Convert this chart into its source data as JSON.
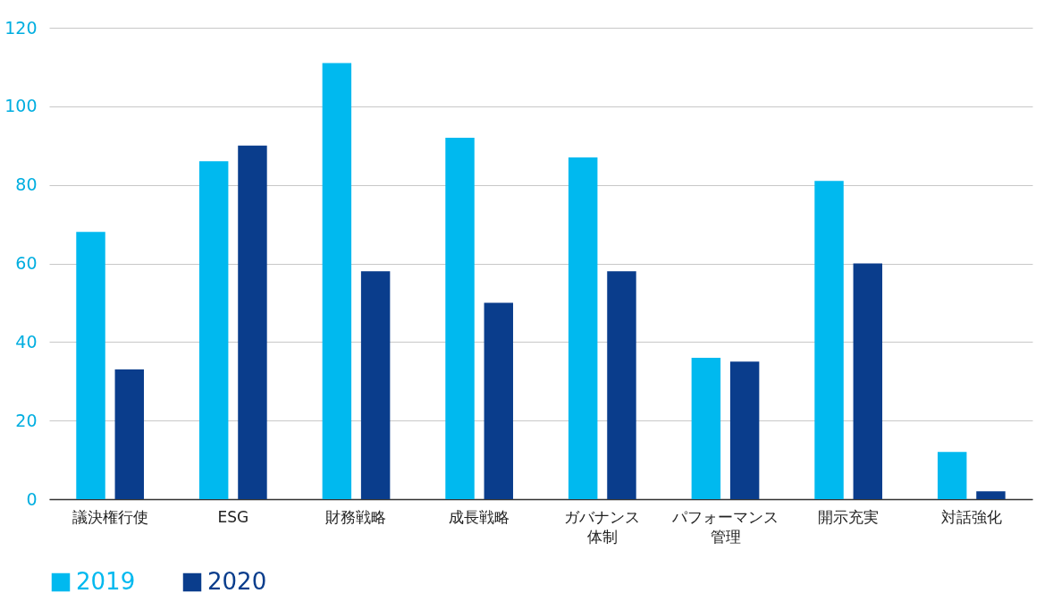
{
  "chart_data": {
    "type": "bar",
    "categories": [
      "議決権行使",
      "ESG",
      "財務戦略",
      "成長戦略",
      "ガバナンス体制",
      "パフォーマンス管理",
      "開示充実",
      "対話強化"
    ],
    "series": [
      {
        "name": "2019",
        "color": "#00b9ef",
        "values": [
          68,
          86,
          111,
          92,
          87,
          36,
          81,
          12
        ]
      },
      {
        "name": "2020",
        "color": "#0a3d8c",
        "values": [
          33,
          90,
          58,
          50,
          58,
          35,
          60,
          2
        ]
      }
    ],
    "ylim": [
      0,
      120
    ],
    "yticks": [
      0,
      20,
      40,
      60,
      80,
      100,
      120
    ],
    "grid": "y",
    "legend": "bottom"
  }
}
